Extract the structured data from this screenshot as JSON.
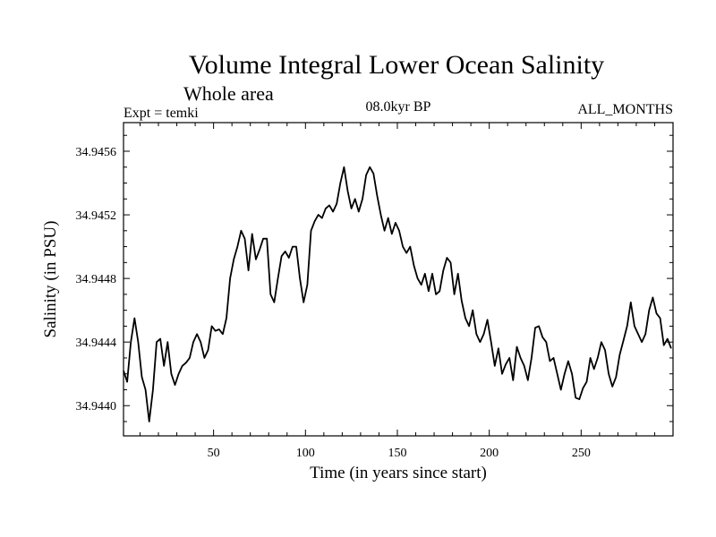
{
  "chart_data": {
    "type": "line",
    "title": "Volume Integral Lower Ocean Salinity",
    "subtitle": "Whole area",
    "expt_label": "Expt = temki",
    "period_label": "08.0kyr BP",
    "months_label": "ALL_MONTHS",
    "xlabel": "Time (in years since start)",
    "ylabel": "Salinity (in PSU)",
    "xlim": [
      1,
      300
    ],
    "ylim": [
      34.94381,
      34.94578
    ],
    "x_ticks": [
      {
        "value": 50,
        "label": "50"
      },
      {
        "value": 100,
        "label": "100"
      },
      {
        "value": 150,
        "label": "150"
      },
      {
        "value": 200,
        "label": "200"
      },
      {
        "value": 250,
        "label": "250"
      }
    ],
    "y_ticks": [
      {
        "value": 34.944,
        "label": "34.9440"
      },
      {
        "value": 34.9444,
        "label": "34.9444"
      },
      {
        "value": 34.9448,
        "label": "34.9448"
      },
      {
        "value": 34.9452,
        "label": "34.9452"
      },
      {
        "value": 34.9456,
        "label": "34.9456"
      }
    ],
    "series": [
      {
        "name": "Salinity",
        "x": [
          1,
          3,
          5,
          7,
          9,
          11,
          13,
          15,
          17,
          19,
          21,
          23,
          25,
          27,
          29,
          31,
          33,
          35,
          37,
          39,
          41,
          43,
          45,
          47,
          49,
          51,
          53,
          55,
          57,
          59,
          61,
          63,
          65,
          67,
          69,
          71,
          73,
          75,
          77,
          79,
          81,
          83,
          85,
          87,
          89,
          91,
          93,
          95,
          97,
          99,
          101,
          103,
          105,
          107,
          109,
          111,
          113,
          115,
          117,
          119,
          121,
          123,
          125,
          127,
          129,
          131,
          133,
          135,
          137,
          139,
          141,
          143,
          145,
          147,
          149,
          151,
          153,
          155,
          157,
          159,
          161,
          163,
          165,
          167,
          169,
          171,
          173,
          175,
          177,
          179,
          181,
          183,
          185,
          187,
          189,
          191,
          193,
          195,
          197,
          199,
          201,
          203,
          205,
          207,
          209,
          211,
          213,
          215,
          217,
          219,
          221,
          223,
          225,
          227,
          229,
          231,
          233,
          235,
          237,
          239,
          241,
          243,
          245,
          247,
          249,
          251,
          253,
          255,
          257,
          259,
          261,
          263,
          265,
          267,
          269,
          271,
          273,
          275,
          277,
          279,
          281,
          283,
          285,
          287,
          289,
          291,
          293,
          295,
          297,
          299
        ],
        "values": [
          34.94422,
          34.94415,
          34.9444,
          34.94455,
          34.9444,
          34.94418,
          34.9441,
          34.9439,
          34.9441,
          34.9444,
          34.94442,
          34.94425,
          34.9444,
          34.9442,
          34.94413,
          34.9442,
          34.94425,
          34.94427,
          34.9443,
          34.9444,
          34.94445,
          34.9444,
          34.9443,
          34.94435,
          34.9445,
          34.94447,
          34.94448,
          34.94445,
          34.94455,
          34.9448,
          34.94492,
          34.945,
          34.9451,
          34.94505,
          34.94485,
          34.94508,
          34.94492,
          34.94498,
          34.94505,
          34.94505,
          34.9447,
          34.94465,
          34.9448,
          34.94494,
          34.94497,
          34.94493,
          34.945,
          34.945,
          34.9448,
          34.94465,
          34.94476,
          34.9451,
          34.94516,
          34.9452,
          34.94518,
          34.94524,
          34.94526,
          34.94522,
          34.94527,
          34.9454,
          34.9455,
          34.94535,
          34.94524,
          34.9453,
          34.94522,
          34.9453,
          34.94545,
          34.9455,
          34.94546,
          34.94532,
          34.9452,
          34.9451,
          34.94518,
          34.94508,
          34.94515,
          34.9451,
          34.945,
          34.94496,
          34.945,
          34.94488,
          34.9448,
          34.94476,
          34.94483,
          34.94472,
          34.94483,
          34.9447,
          34.94472,
          34.94485,
          34.94493,
          34.9449,
          34.9447,
          34.94483,
          34.94466,
          34.94455,
          34.9445,
          34.9446,
          34.94445,
          34.9444,
          34.94445,
          34.94454,
          34.9444,
          34.94425,
          34.94436,
          34.9442,
          34.94426,
          34.9443,
          34.94416,
          34.94437,
          34.9443,
          34.94425,
          34.94416,
          34.9443,
          34.94449,
          34.9445,
          34.94443,
          34.9444,
          34.94428,
          34.9443,
          34.9442,
          34.9441,
          34.9442,
          34.94428,
          34.9442,
          34.94405,
          34.94404,
          34.94411,
          34.94415,
          34.9443,
          34.94423,
          34.9443,
          34.9444,
          34.94435,
          34.9442,
          34.94412,
          34.94418,
          34.94432,
          34.94441,
          34.9445,
          34.94465,
          34.9445,
          34.94445,
          34.9444,
          34.94445,
          34.9446,
          34.94468,
          34.94458,
          34.94455,
          34.94438,
          34.94442,
          34.94436
        ]
      }
    ]
  },
  "colors": {
    "line": "#000000",
    "axes": "#000000",
    "background": "#ffffff"
  }
}
